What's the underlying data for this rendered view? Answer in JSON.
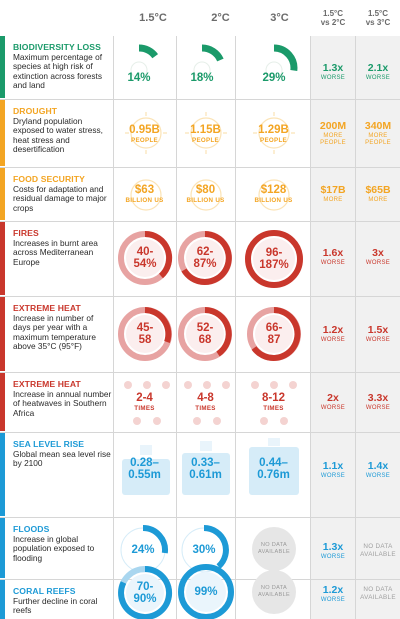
{
  "header": {
    "col1": "1.5°C",
    "col2": "2°C",
    "col3": "3°C",
    "comp1_line1": "1.5°C",
    "comp1_line2": "vs 2°C",
    "comp2_line1": "1.5°C",
    "comp2_line2": "vs 3°C"
  },
  "colors": {
    "green": "#1b9a6a",
    "orange": "#f3a523",
    "red": "#c9372c",
    "blue": "#1d9ad6",
    "pink": "#e7a3a2"
  },
  "rows": [
    {
      "title": "BIODIVERSITY LOSS",
      "desc": "Maximum percentage of species at high risk of extinction across forests and land",
      "color": "green",
      "values": [
        "14%",
        "18%",
        "29%"
      ],
      "ratio1": "1.3x",
      "ratio1_unit": "WORSE",
      "ratio2": "2.1x",
      "ratio2_unit": "WORSE"
    },
    {
      "title": "DROUGHT",
      "desc": "Dryland population exposed to water stress, heat stress and desertification",
      "color": "orange",
      "values": [
        "0.95B",
        "1.15B",
        "1.29B"
      ],
      "unit": "PEOPLE",
      "ratio1": "200M",
      "ratio1_unit_l1": "MORE",
      "ratio1_unit_l2": "PEOPLE",
      "ratio2": "340M",
      "ratio2_unit_l1": "MORE",
      "ratio2_unit_l2": "PEOPLE"
    },
    {
      "title": "FOOD SECURITY",
      "desc": "Costs for adaptation and residual damage to major crops",
      "color": "orange",
      "values": [
        "$63",
        "$80",
        "$128"
      ],
      "unit": "BILLION US",
      "ratio1": "$17B",
      "ratio1_unit": "MORE",
      "ratio2": "$65B",
      "ratio2_unit": "MORE"
    },
    {
      "title": "FIRES",
      "desc": "Increases in burnt area across Mediterranean Europe",
      "color": "red",
      "values_l1": [
        "40-",
        "62-",
        "96-"
      ],
      "values_l2": [
        "54%",
        "87%",
        "187%"
      ],
      "ratio1": "1.6x",
      "ratio1_unit": "WORSE",
      "ratio2": "3x",
      "ratio2_unit": "WORSE"
    },
    {
      "title": "EXTREME HEAT",
      "desc": "Increase in number of days per year with a maximum temperature above 35°C (95°F)",
      "color": "red",
      "values_l1": [
        "45-",
        "52-",
        "66-"
      ],
      "values_l2": [
        "58",
        "68",
        "87"
      ],
      "ratio1": "1.2x",
      "ratio1_unit": "WORSE",
      "ratio2": "1.5x",
      "ratio2_unit": "WORSE"
    },
    {
      "title": "EXTREME HEAT",
      "desc": "Increase in annual number of heatwaves in Southern Africa",
      "color": "red",
      "values": [
        "2-4",
        "4-8",
        "8-12"
      ],
      "unit": "TIMES",
      "ratio1": "2x",
      "ratio1_unit": "WORSE",
      "ratio2": "3.3x",
      "ratio2_unit": "WORSE"
    },
    {
      "title": "SEA LEVEL RISE",
      "desc": "Global mean sea level rise by 2100",
      "color": "blue",
      "values_l1": [
        "0.28–",
        "0.33–",
        "0.44–"
      ],
      "values_l2": [
        "0.55m",
        "0.61m",
        "0.76m"
      ],
      "ratio1": "1.1x",
      "ratio1_unit": "WORSE",
      "ratio2": "1.4x",
      "ratio2_unit": "WORSE"
    },
    {
      "title": "FLOODS",
      "desc": "Increase in global population exposed to flooding",
      "color": "blue",
      "values": [
        "24%",
        "30%"
      ],
      "nodata_l1": "NO DATA",
      "nodata_l2": "AVAILABLE",
      "ratio1": "1.3x",
      "ratio1_unit": "WORSE",
      "ratio2_nodata_l1": "NO DATA",
      "ratio2_nodata_l2": "AVAILABLE"
    },
    {
      "title": "CORAL REEFS",
      "desc": "Further decline in coral reefs",
      "color": "blue",
      "values_l1": [
        "70-"
      ],
      "values_l2": [
        "90%"
      ],
      "value2": "99%",
      "nodata_l1": "NO DATA",
      "nodata_l2": "AVAILABLE",
      "ratio1": "1.2x",
      "ratio1_unit": "WORSE",
      "ratio2_nodata_l1": "NO DATA",
      "ratio2_nodata_l2": "AVAILABLE"
    }
  ]
}
